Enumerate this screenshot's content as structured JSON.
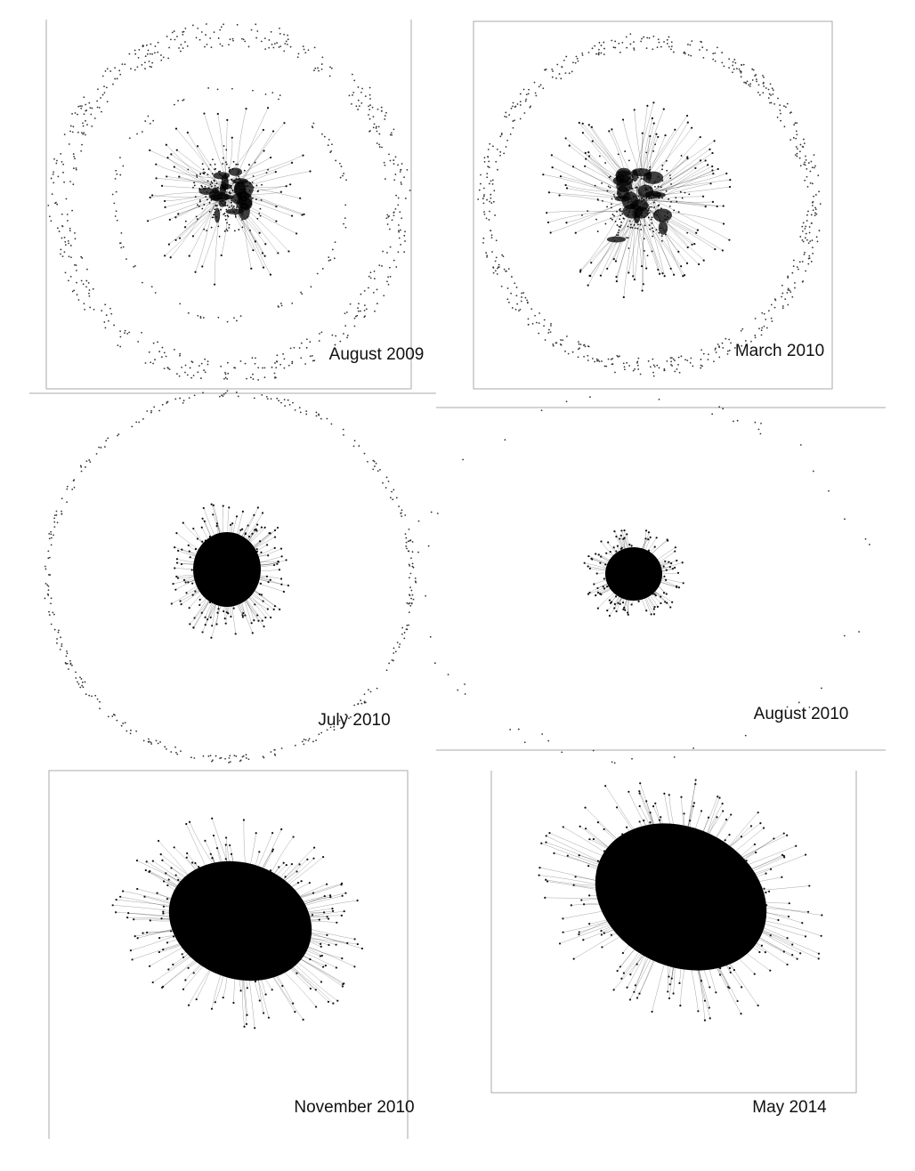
{
  "panels": [
    {
      "label": "August 2009"
    },
    {
      "label": "March 2010"
    },
    {
      "label": "July 2010"
    },
    {
      "label": "August 2010"
    },
    {
      "label": "November 2010"
    },
    {
      "label": "May 2014"
    }
  ]
}
